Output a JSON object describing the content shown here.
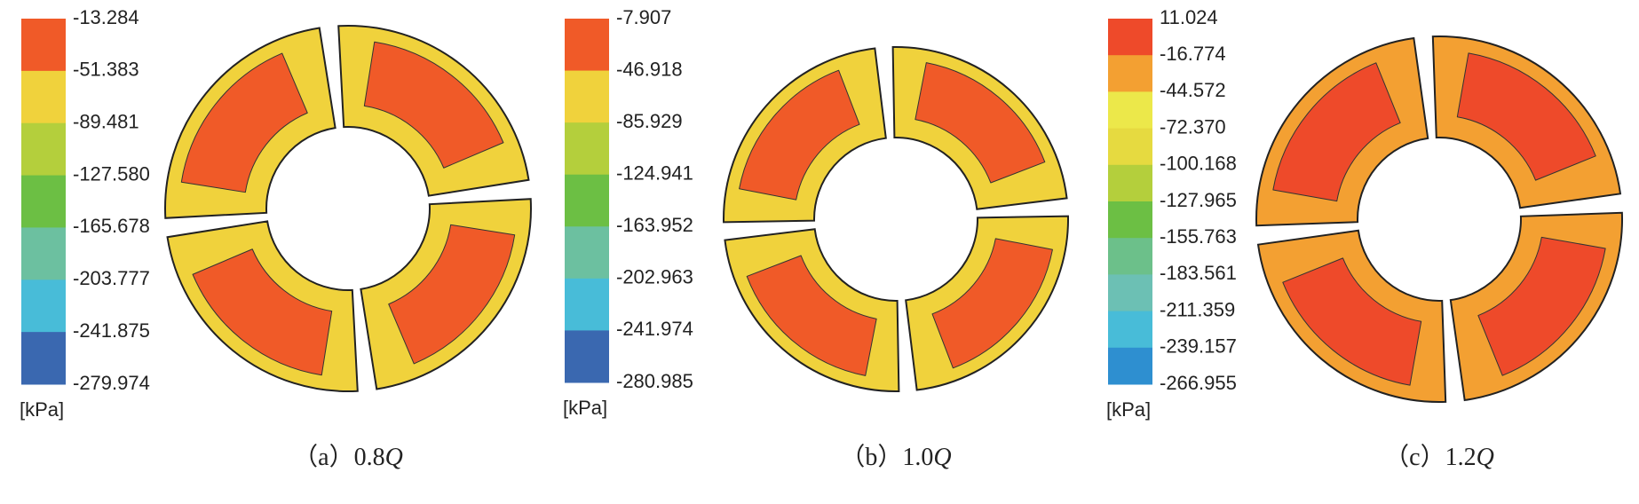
{
  "panels": [
    {
      "colorbar": {
        "labels": [
          "-13.284",
          "-51.383",
          "-89.481",
          "-127.580",
          "-165.678",
          "-203.777",
          "-241.875",
          "-279.974"
        ],
        "colors": [
          "#f05a28",
          "#f0d23c",
          "#b4cf3c",
          "#6cbf44",
          "#6cc0a0",
          "#48bcd8",
          "#3a68b0"
        ],
        "unit": "[kPa]"
      },
      "caption": {
        "label": "（a）0.8",
        "variable": "Q"
      }
    },
    {
      "colorbar": {
        "labels": [
          "-7.907",
          "-46.918",
          "-85.929",
          "-124.941",
          "-163.952",
          "-202.963",
          "-241.974",
          "-280.985"
        ],
        "colors": [
          "#f05a28",
          "#f0d23c",
          "#b4cf3c",
          "#6cbf44",
          "#6cc0a0",
          "#48bcd8",
          "#3a68b0"
        ],
        "unit": "[kPa]"
      },
      "caption": {
        "label": "（b）1.0",
        "variable": "Q"
      }
    },
    {
      "colorbar": {
        "labels": [
          "11.024",
          "-16.774",
          "-44.572",
          "-72.370",
          "-100.168",
          "-127.965",
          "-155.763",
          "-183.561",
          "-211.359",
          "-239.157",
          "-266.955"
        ],
        "colors": [
          "#ee4a2a",
          "#f3a032",
          "#ece84a",
          "#e6da40",
          "#b4cf3c",
          "#6cbf44",
          "#6cc08a",
          "#6cc0b4",
          "#48bcd8",
          "#2e8fd0"
        ],
        "unit": "[kPa]"
      },
      "caption": {
        "label": "（c）1.2",
        "variable": "Q"
      }
    }
  ]
}
